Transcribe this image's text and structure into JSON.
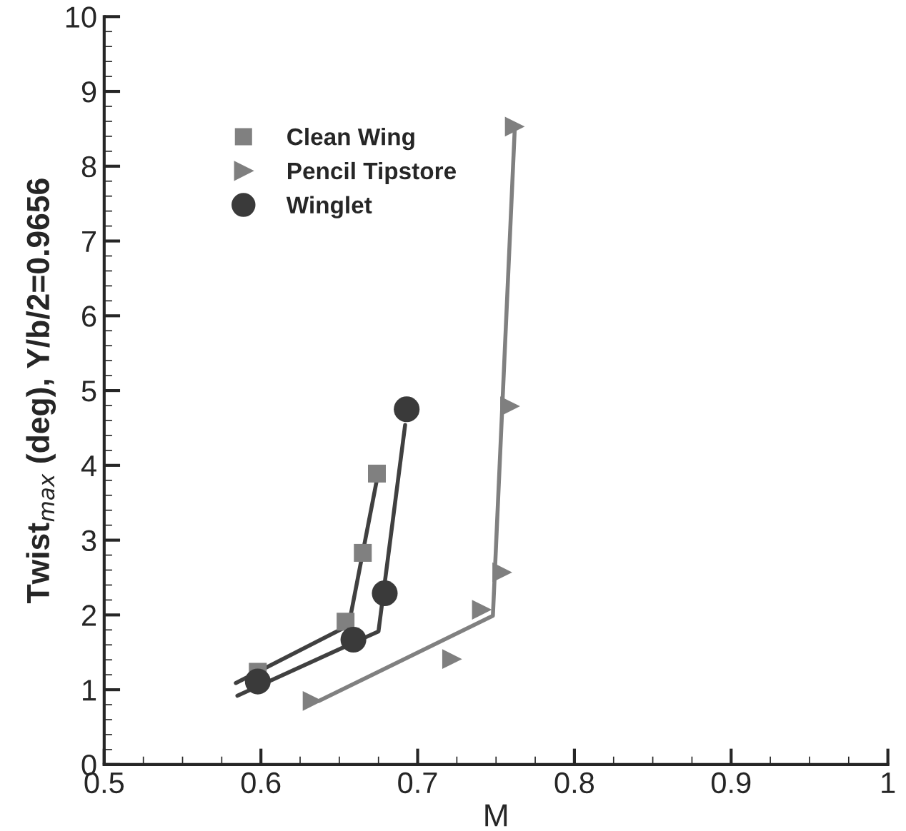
{
  "chart_data": {
    "type": "scatter",
    "xlabel": "M",
    "ylabel": "Twist$_{max}$ (deg), Y/b/2=0.9656",
    "xlim": [
      0.5,
      1
    ],
    "xticks": [
      0.5,
      0.6,
      0.7,
      0.8,
      0.9,
      1
    ],
    "ylim": [
      0,
      10
    ],
    "yticks": [
      0,
      1,
      2,
      3,
      4,
      5,
      6,
      7,
      8,
      9,
      10
    ],
    "grid": false,
    "legend": "top left",
    "series": [
      {
        "name": "Clean Wing",
        "marker": "square",
        "color": "#808080",
        "x": [
          0.598,
          0.654,
          0.665,
          0.674
        ],
        "values": [
          1.24,
          1.91,
          2.83,
          3.89
        ]
      },
      {
        "name": "Pencil Tipstore",
        "marker": "triangle",
        "color": "#7f7f7f",
        "x": [
          0.633,
          0.722,
          0.741,
          0.754,
          0.759,
          0.762
        ],
        "values": [
          0.85,
          1.41,
          2.07,
          2.57,
          4.79,
          8.53
        ]
      },
      {
        "name": "Winglet",
        "marker": "circle",
        "color": "#3a3a3a",
        "x": [
          0.598,
          0.659,
          0.679,
          0.693
        ],
        "values": [
          1.11,
          1.67,
          2.29,
          4.75
        ]
      },
      {
        "type": "line",
        "color": "#404040",
        "x": [
          0.584,
          0.656,
          0.674
        ],
        "values": [
          1.09,
          1.86,
          3.81
        ]
      },
      {
        "type": "line",
        "color": "#404040",
        "x": [
          0.585,
          0.675,
          0.692
        ],
        "values": [
          0.92,
          1.78,
          4.54
        ]
      },
      {
        "type": "line",
        "color": "#808080",
        "x": [
          0.637,
          0.748,
          0.762
        ],
        "values": [
          0.85,
          1.99,
          8.53
        ]
      }
    ]
  }
}
